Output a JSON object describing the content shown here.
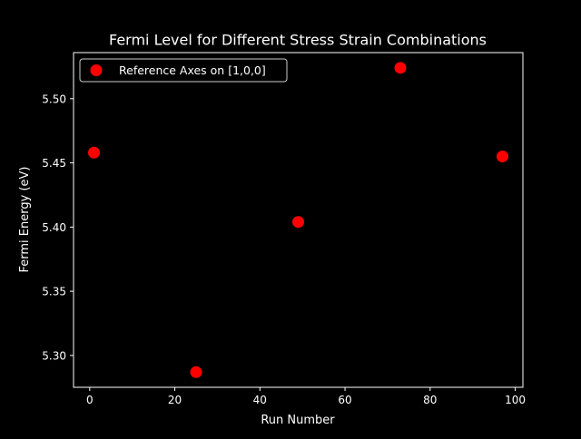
{
  "colors": {
    "background": "#000000",
    "foreground": "#ffffff",
    "marker": "#ff0000"
  },
  "chart_data": {
    "type": "scatter",
    "title": "Fermi Level for Different Stress Strain Combinations",
    "xlabel": "Run Number",
    "ylabel": "Fermi Energy (eV)",
    "xlim": [
      -3.8,
      101.8
    ],
    "ylim": [
      5.2752,
      5.5359
    ],
    "xticks": [
      0,
      20,
      40,
      60,
      80,
      100
    ],
    "xtick_labels": [
      "0",
      "20",
      "40",
      "60",
      "80",
      "100"
    ],
    "yticks": [
      5.3,
      5.35,
      5.4,
      5.45,
      5.5
    ],
    "ytick_labels": [
      "5.30",
      "5.35",
      "5.40",
      "5.45",
      "5.50"
    ],
    "grid": false,
    "legend_position": "upper-left",
    "series": [
      {
        "name": "Reference Axes on [1,0,0]",
        "marker": "circle",
        "color": "#ff0000",
        "x": [
          1,
          25,
          49,
          73,
          97
        ],
        "y": [
          5.458,
          5.287,
          5.404,
          5.524,
          5.455
        ]
      }
    ]
  }
}
